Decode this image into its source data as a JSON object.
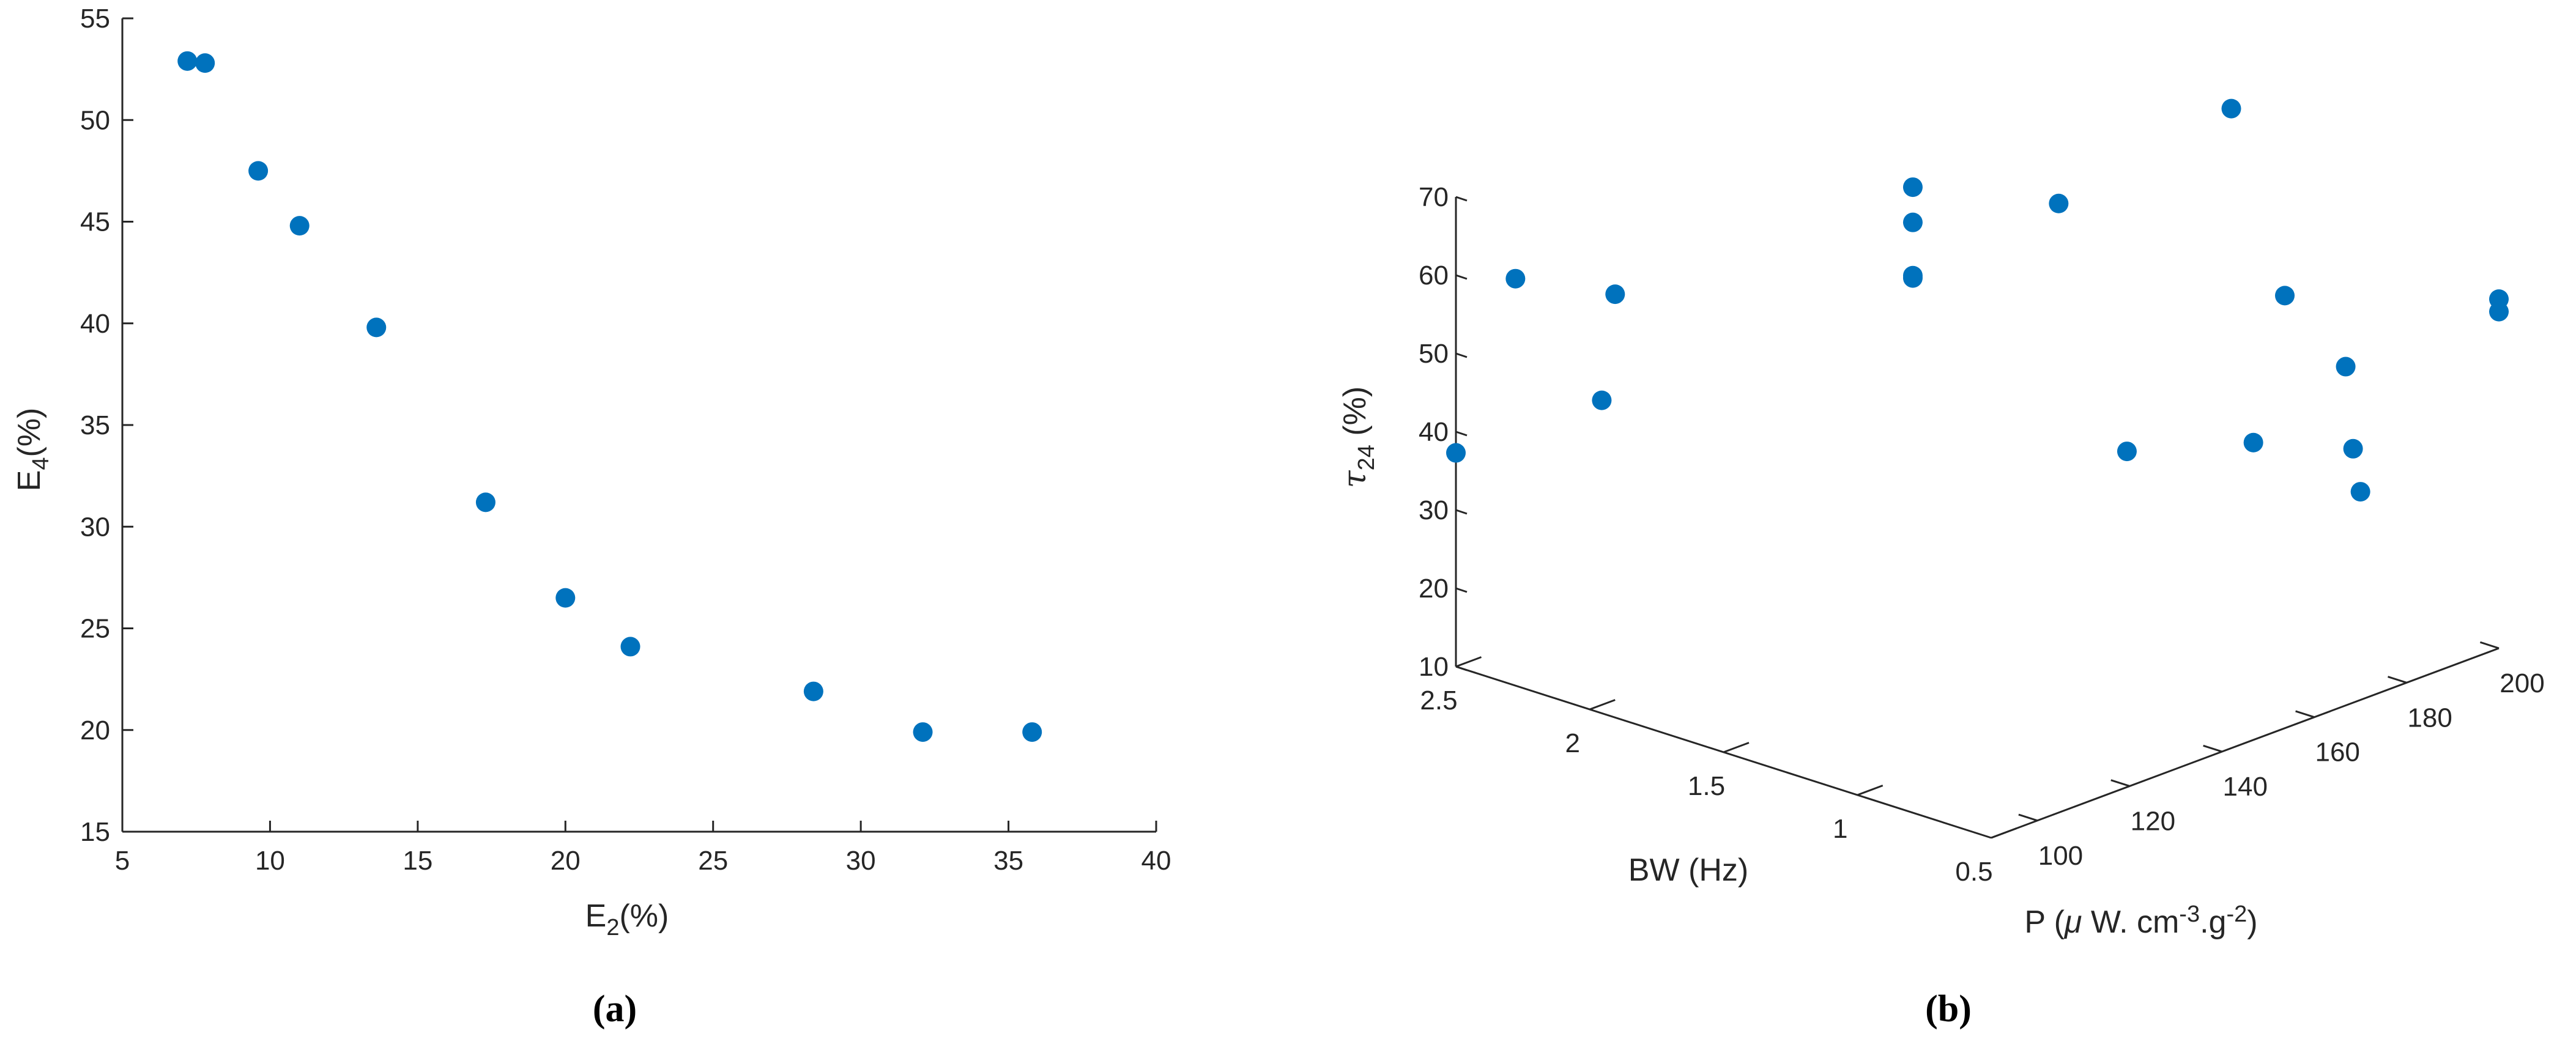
{
  "colors": {
    "marker": "#0072BD",
    "axis": "#262626",
    "background": "#ffffff"
  },
  "chart_data": [
    {
      "type": "scatter",
      "panel": "(a)",
      "xlabel": {
        "base": "E",
        "sub": "2",
        "suffix": "(%)"
      },
      "ylabel": {
        "base": "E",
        "sub": "4",
        "suffix": "(%)"
      },
      "xlim": [
        5,
        40
      ],
      "ylim": [
        15,
        55
      ],
      "xticks": [
        5,
        10,
        15,
        20,
        25,
        30,
        35,
        40
      ],
      "yticks": [
        15,
        20,
        25,
        30,
        35,
        40,
        45,
        50,
        55
      ],
      "grid": false,
      "points": [
        {
          "x": 7.2,
          "y": 52.9
        },
        {
          "x": 7.8,
          "y": 52.8
        },
        {
          "x": 9.6,
          "y": 47.5
        },
        {
          "x": 11.0,
          "y": 44.8
        },
        {
          "x": 13.6,
          "y": 39.8
        },
        {
          "x": 17.3,
          "y": 31.2
        },
        {
          "x": 20.0,
          "y": 26.5
        },
        {
          "x": 22.2,
          "y": 24.1
        },
        {
          "x": 28.4,
          "y": 21.9
        },
        {
          "x": 32.1,
          "y": 19.9
        },
        {
          "x": 35.8,
          "y": 19.9
        }
      ]
    },
    {
      "type": "scatter3d",
      "panel": "(b)",
      "xlabel": "BW (Hz)",
      "ylabel": {
        "prefix": "P (",
        "mu": "μ",
        "mid": " W. cm",
        "sup1": "-3",
        "mid2": ".g",
        "sup2": "-2",
        "suffix": ")"
      },
      "zlabel": {
        "tau": "τ",
        "sub": "24",
        "suffix": " (%)"
      },
      "xlim": [
        0.5,
        2.5
      ],
      "ylim": [
        90,
        200
      ],
      "zlim": [
        10,
        70
      ],
      "xticks": [
        0.5,
        1,
        1.5,
        2,
        2.5
      ],
      "yticks": [
        100,
        120,
        140,
        160,
        180,
        200
      ],
      "zticks": [
        10,
        20,
        30,
        40,
        50,
        60,
        70
      ],
      "grid": false,
      "points": [
        {
          "x": 2.45,
          "y": 100,
          "z": 57.9
        },
        {
          "x": 2.5,
          "y": 90,
          "z": 37.3
        },
        {
          "x": 2.25,
          "y": 110,
          "z": 55.9
        },
        {
          "x": 2.3,
          "y": 110,
          "z": 41.8
        },
        {
          "x": 2.0,
          "y": 160,
          "z": 61.3
        },
        {
          "x": 2.0,
          "y": 160,
          "z": 56.8
        },
        {
          "x": 2.0,
          "y": 160,
          "z": 50.0
        },
        {
          "x": 2.0,
          "y": 160,
          "z": 49.7
        },
        {
          "x": 1.8,
          "y": 180,
          "z": 57.0
        },
        {
          "x": 1.5,
          "y": 200,
          "z": 68.0
        },
        {
          "x": 1.2,
          "y": 160,
          "z": 36.3
        },
        {
          "x": 1.3,
          "y": 200,
          "z": 46.3
        },
        {
          "x": 0.9,
          "y": 170,
          "z": 38.5
        },
        {
          "x": 0.7,
          "y": 180,
          "z": 37.7
        },
        {
          "x": 0.9,
          "y": 190,
          "z": 43.8
        },
        {
          "x": 0.5,
          "y": 170,
          "z": 36.6
        },
        {
          "x": 0.5,
          "y": 200,
          "z": 54.6
        },
        {
          "x": 0.5,
          "y": 200,
          "z": 53.0
        }
      ]
    }
  ]
}
